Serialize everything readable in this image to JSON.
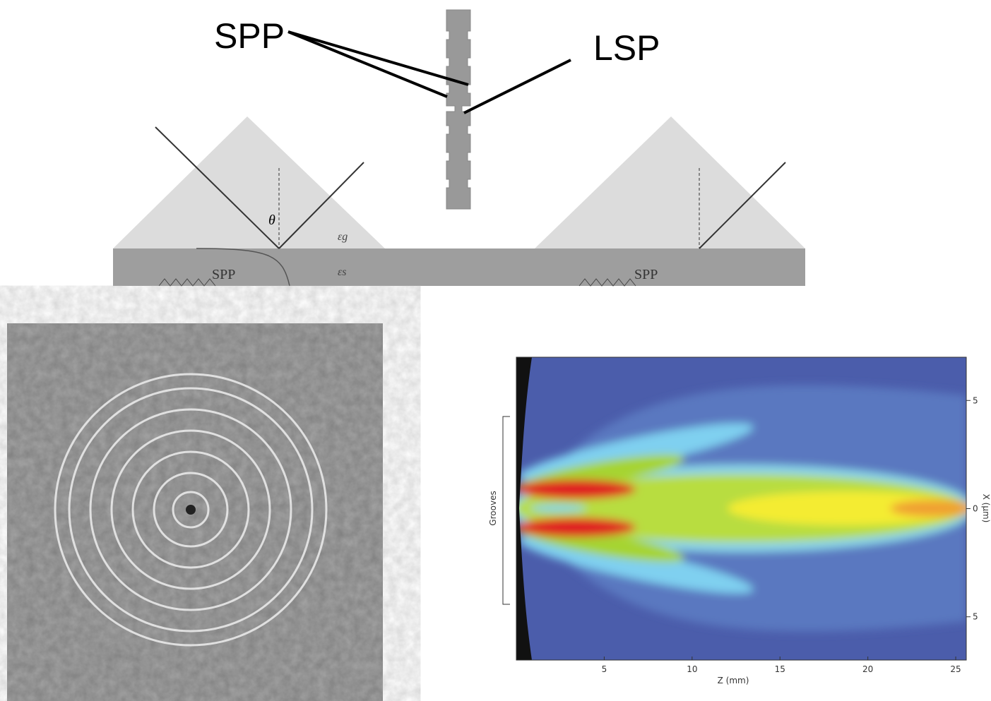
{
  "diagram": {
    "labels": {
      "spp": "SPP",
      "lsp": "LSP"
    },
    "prism_left": {
      "theta": "θ",
      "eps_g": "εg",
      "eps_s": "εs",
      "spp": "SPP"
    },
    "prism_right": {
      "spp": "SPP"
    }
  },
  "field_plot": {
    "side_label": "Grooves",
    "xlabel": "Z (mm)",
    "ylabel": "X (μm)",
    "xlim": [
      0,
      25.6
    ],
    "ylim": [
      -7,
      7
    ],
    "xticks": [
      5,
      10,
      15,
      20,
      25
    ],
    "yticks": [
      5,
      0,
      {
        "value": -5,
        "label": "5"
      }
    ]
  }
}
